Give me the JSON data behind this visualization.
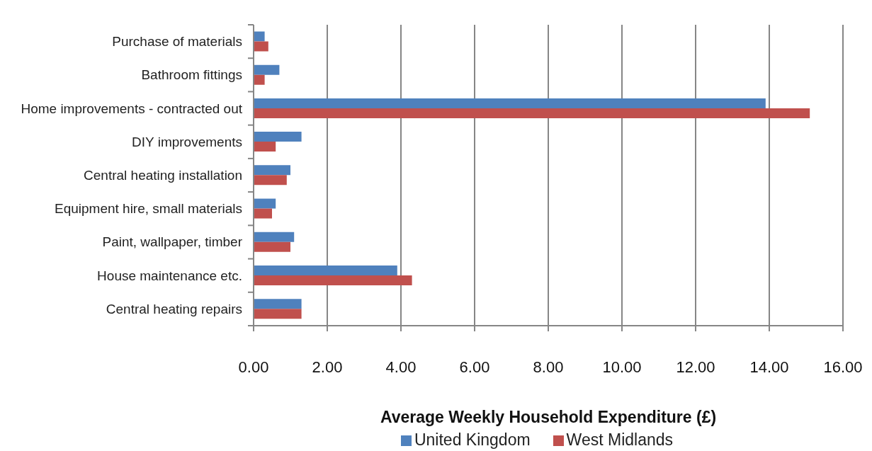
{
  "chart_data": {
    "type": "bar",
    "orientation": "horizontal",
    "xlabel": "Average Weekly Household Expenditure (£)",
    "categories": [
      "Purchase of materials",
      "Bathroom fittings",
      "Home improvements - contracted out",
      "DIY improvements",
      "Central heating installation",
      "Equipment hire, small materials",
      "Paint, wallpaper, timber",
      "House maintenance etc.",
      "Central heating repairs"
    ],
    "series": [
      {
        "name": "United Kingdom",
        "color": "#4f81bd",
        "values": [
          0.3,
          0.7,
          13.9,
          1.3,
          1.0,
          0.6,
          1.1,
          3.9,
          1.3
        ]
      },
      {
        "name": "West Midlands",
        "color": "#c0504d",
        "values": [
          0.4,
          0.3,
          15.1,
          0.6,
          0.9,
          0.5,
          1.0,
          4.3,
          1.3
        ]
      }
    ],
    "xlim": [
      0,
      16
    ],
    "xticks": [
      {
        "value": 0,
        "label": "0.00"
      },
      {
        "value": 2,
        "label": "2.00"
      },
      {
        "value": 4,
        "label": "4.00"
      },
      {
        "value": 6,
        "label": "6.00"
      },
      {
        "value": 8,
        "label": "8.00"
      },
      {
        "value": 10,
        "label": "10.00"
      },
      {
        "value": 12,
        "label": "12.00"
      },
      {
        "value": 14,
        "label": "14.00"
      },
      {
        "value": 16,
        "label": "16.00"
      }
    ],
    "grid": "x",
    "legend": "bottom"
  }
}
